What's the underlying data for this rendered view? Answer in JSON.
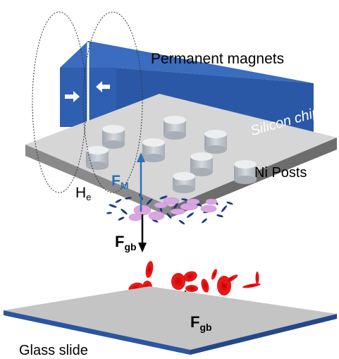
{
  "labels": {
    "permanent_magnets": "Permanent magnets",
    "silicon_chip": "Silicon chip",
    "ni_posts": "Ni Posts",
    "he_main": "H",
    "he_sub": "e",
    "fm_main": "F",
    "fm_sub": "M",
    "fgb_main": "F",
    "fgb_sub": "gb",
    "glass_slide": "Glass slide"
  },
  "colors": {
    "magnet_blue": "#2e5fb0",
    "chip_gray": "#d6d6d6",
    "chip_edge": "#6d6d6d",
    "fm_arrow": "#2f6fb5",
    "rbc_red": "#e00f0f",
    "bound_cell_pink": "#d9a6e0",
    "particle_navy": "#1b3a7a",
    "glass": "#c4c4c4",
    "glass_edge": "#2c55a0"
  },
  "icons": [
    "left-arrow-icon",
    "right-arrow-icon"
  ]
}
